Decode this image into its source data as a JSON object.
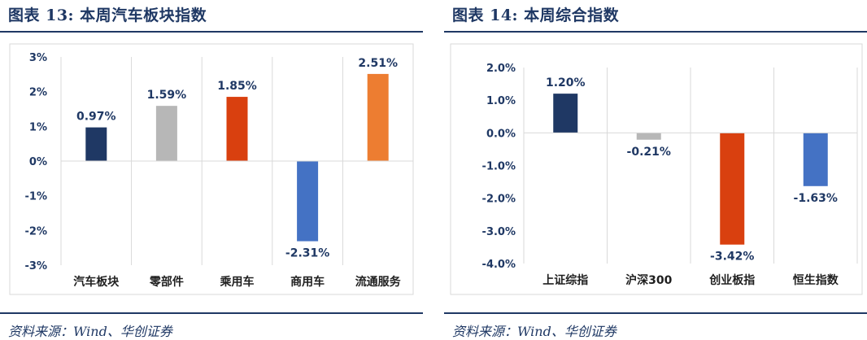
{
  "charts": [
    {
      "figure_title": "图表 13:  本周汽车板块指数",
      "source": "资料来源：Wind、华创证券"
    },
    {
      "figure_title": "图表 14:  本周综合指数",
      "source": "资料来源：Wind、华创证券"
    }
  ],
  "chart_data": [
    {
      "type": "bar",
      "categories": [
        "汽车板块",
        "零部件",
        "乘用车",
        "商用车",
        "流通服务"
      ],
      "values": [
        0.97,
        1.59,
        1.85,
        -2.31,
        2.51
      ],
      "value_labels": [
        "0.97%",
        "1.59%",
        "1.85%",
        "-2.31%",
        "2.51%"
      ],
      "colors": [
        "#1f3864",
        "#b7b7b7",
        "#d9400f",
        "#4472c4",
        "#ed7d31"
      ],
      "ylim": [
        -3,
        3
      ],
      "yticks": [
        3,
        2,
        1,
        0,
        -1,
        -2,
        -3
      ],
      "ytick_labels": [
        "3%",
        "2%",
        "1%",
        "0%",
        "-1%",
        "-2%",
        "-3%"
      ],
      "vertical_separators": true,
      "title": "",
      "xlabel": "",
      "ylabel": ""
    },
    {
      "type": "bar",
      "categories": [
        "上证综指",
        "沪深300",
        "创业板指",
        "恒生指数"
      ],
      "values": [
        1.2,
        -0.21,
        -3.42,
        -1.63
      ],
      "value_labels": [
        "1.20%",
        "-0.21%",
        "-3.42%",
        "-1.63%"
      ],
      "colors": [
        "#1f3864",
        "#b7b7b7",
        "#d9400f",
        "#4472c4"
      ],
      "ylim": [
        -4,
        2
      ],
      "yticks": [
        2,
        1,
        0,
        -1,
        -2,
        -3,
        -4
      ],
      "ytick_labels": [
        "2.0%",
        "1.0%",
        "0.0%",
        "-1.0%",
        "-2.0%",
        "-3.0%",
        "-4.0%"
      ],
      "vertical_separators": true,
      "title": "",
      "xlabel": "",
      "ylabel": ""
    }
  ]
}
